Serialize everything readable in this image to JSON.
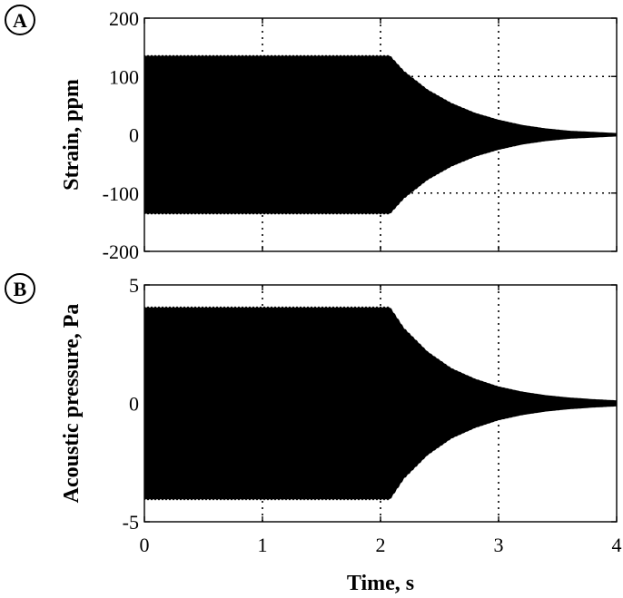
{
  "figure": {
    "xlabel": "Time, s"
  },
  "chart_data": [
    {
      "type": "area",
      "panel_label": "A",
      "ylabel": "Strain, ppm",
      "xlim": [
        0,
        4
      ],
      "ylim": [
        -200,
        200
      ],
      "xticks": [
        0,
        1,
        2,
        3,
        4
      ],
      "yticks": [
        200,
        100,
        0,
        -100,
        -200
      ],
      "ytick_labels": [
        "200",
        "100",
        "0",
        "-100",
        "-200"
      ],
      "xtick_labels_shown": false,
      "grid": true,
      "envelope": {
        "t": [
          0,
          0.5,
          1.0,
          1.5,
          2.0,
          2.08,
          2.2,
          2.4,
          2.6,
          2.8,
          3.0,
          3.2,
          3.4,
          3.6,
          3.8,
          4.0
        ],
        "amp": [
          137,
          137,
          137,
          137,
          137,
          137,
          110,
          78,
          55,
          38,
          26,
          17,
          11,
          7,
          5,
          3
        ]
      }
    },
    {
      "type": "area",
      "panel_label": "B",
      "ylabel": "Acoustic pressure, Pa",
      "xlim": [
        0,
        4
      ],
      "ylim": [
        -5,
        5
      ],
      "xticks": [
        0,
        1,
        2,
        3,
        4
      ],
      "yticks": [
        5,
        0,
        -5
      ],
      "ytick_labels": [
        "5",
        "0",
        "-5"
      ],
      "xtick_labels": [
        "0",
        "1",
        "2",
        "3",
        "4"
      ],
      "grid": true,
      "envelope": {
        "t": [
          0,
          0.5,
          1.0,
          1.5,
          2.0,
          2.08,
          2.2,
          2.4,
          2.6,
          2.8,
          3.0,
          3.2,
          3.4,
          3.6,
          3.8,
          4.0
        ],
        "amp": [
          4.1,
          4.1,
          4.1,
          4.1,
          4.1,
          4.1,
          3.2,
          2.2,
          1.5,
          1.05,
          0.72,
          0.5,
          0.35,
          0.25,
          0.18,
          0.13
        ]
      }
    }
  ]
}
